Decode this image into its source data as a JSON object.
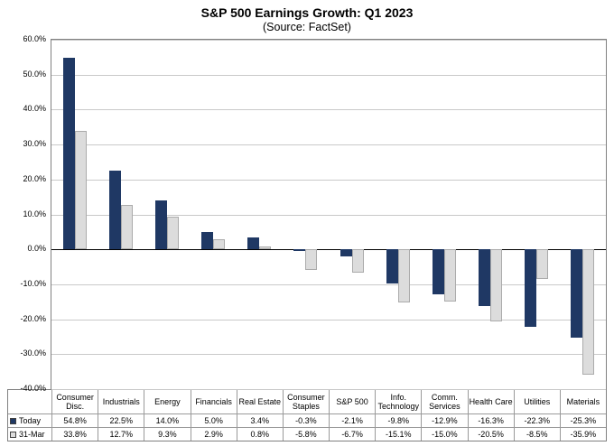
{
  "chart_data": {
    "type": "bar",
    "title": "S&P 500 Earnings Growth: Q1 2023",
    "subtitle": "(Source: FactSet)",
    "categories": [
      "Consumer Disc.",
      "Industrials",
      "Energy",
      "Financials",
      "Real Estate",
      "Consumer Staples",
      "S&P 500",
      "Info. Technology",
      "Comm. Services",
      "Health Care",
      "Utilities",
      "Materials"
    ],
    "series": [
      {
        "name": "Today",
        "color": "#1F3864",
        "border": "#1F3864",
        "values": [
          54.8,
          22.5,
          14.0,
          5.0,
          3.4,
          -0.3,
          -2.1,
          -9.8,
          -12.9,
          -16.3,
          -22.3,
          -25.3
        ]
      },
      {
        "name": "31-Mar",
        "color": "#DCDCDC",
        "border": "#ABABAB",
        "values": [
          33.8,
          12.7,
          9.3,
          2.9,
          0.8,
          -5.8,
          -6.7,
          -15.1,
          -15.0,
          -20.5,
          -8.5,
          -35.9
        ]
      }
    ],
    "ylim": [
      -40,
      60
    ],
    "ytick_step": 10,
    "ytick_labels": [
      "60.0%",
      "50.0%",
      "40.0%",
      "30.0%",
      "20.0%",
      "10.0%",
      "0.0%",
      "-10.0%",
      "-20.0%",
      "-30.0%",
      "-40.0%"
    ],
    "value_suffix": "%",
    "grid": true,
    "legend_position": "data-table-left",
    "xlabel": "",
    "ylabel": ""
  }
}
